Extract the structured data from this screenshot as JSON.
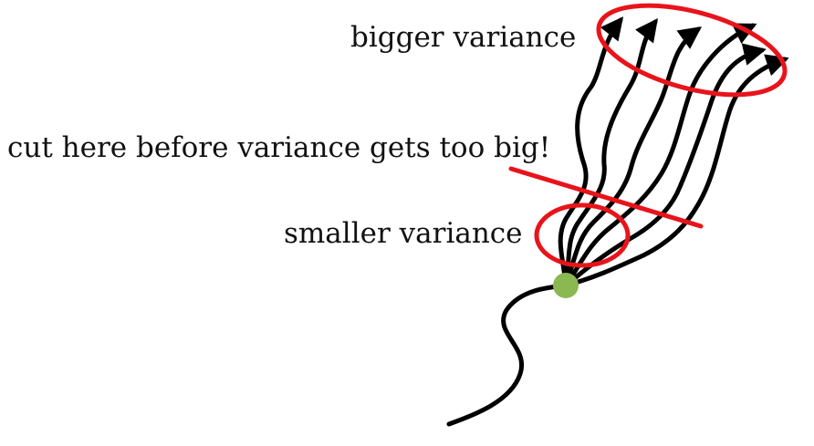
{
  "labels": {
    "bigger_variance": "bigger variance",
    "cut_here": "cut here before variance gets too big!",
    "smaller_variance": "smaller variance"
  },
  "colors": {
    "trajectory": "#000000",
    "highlight": "#e8141b",
    "start_point": "#8cb852"
  }
}
